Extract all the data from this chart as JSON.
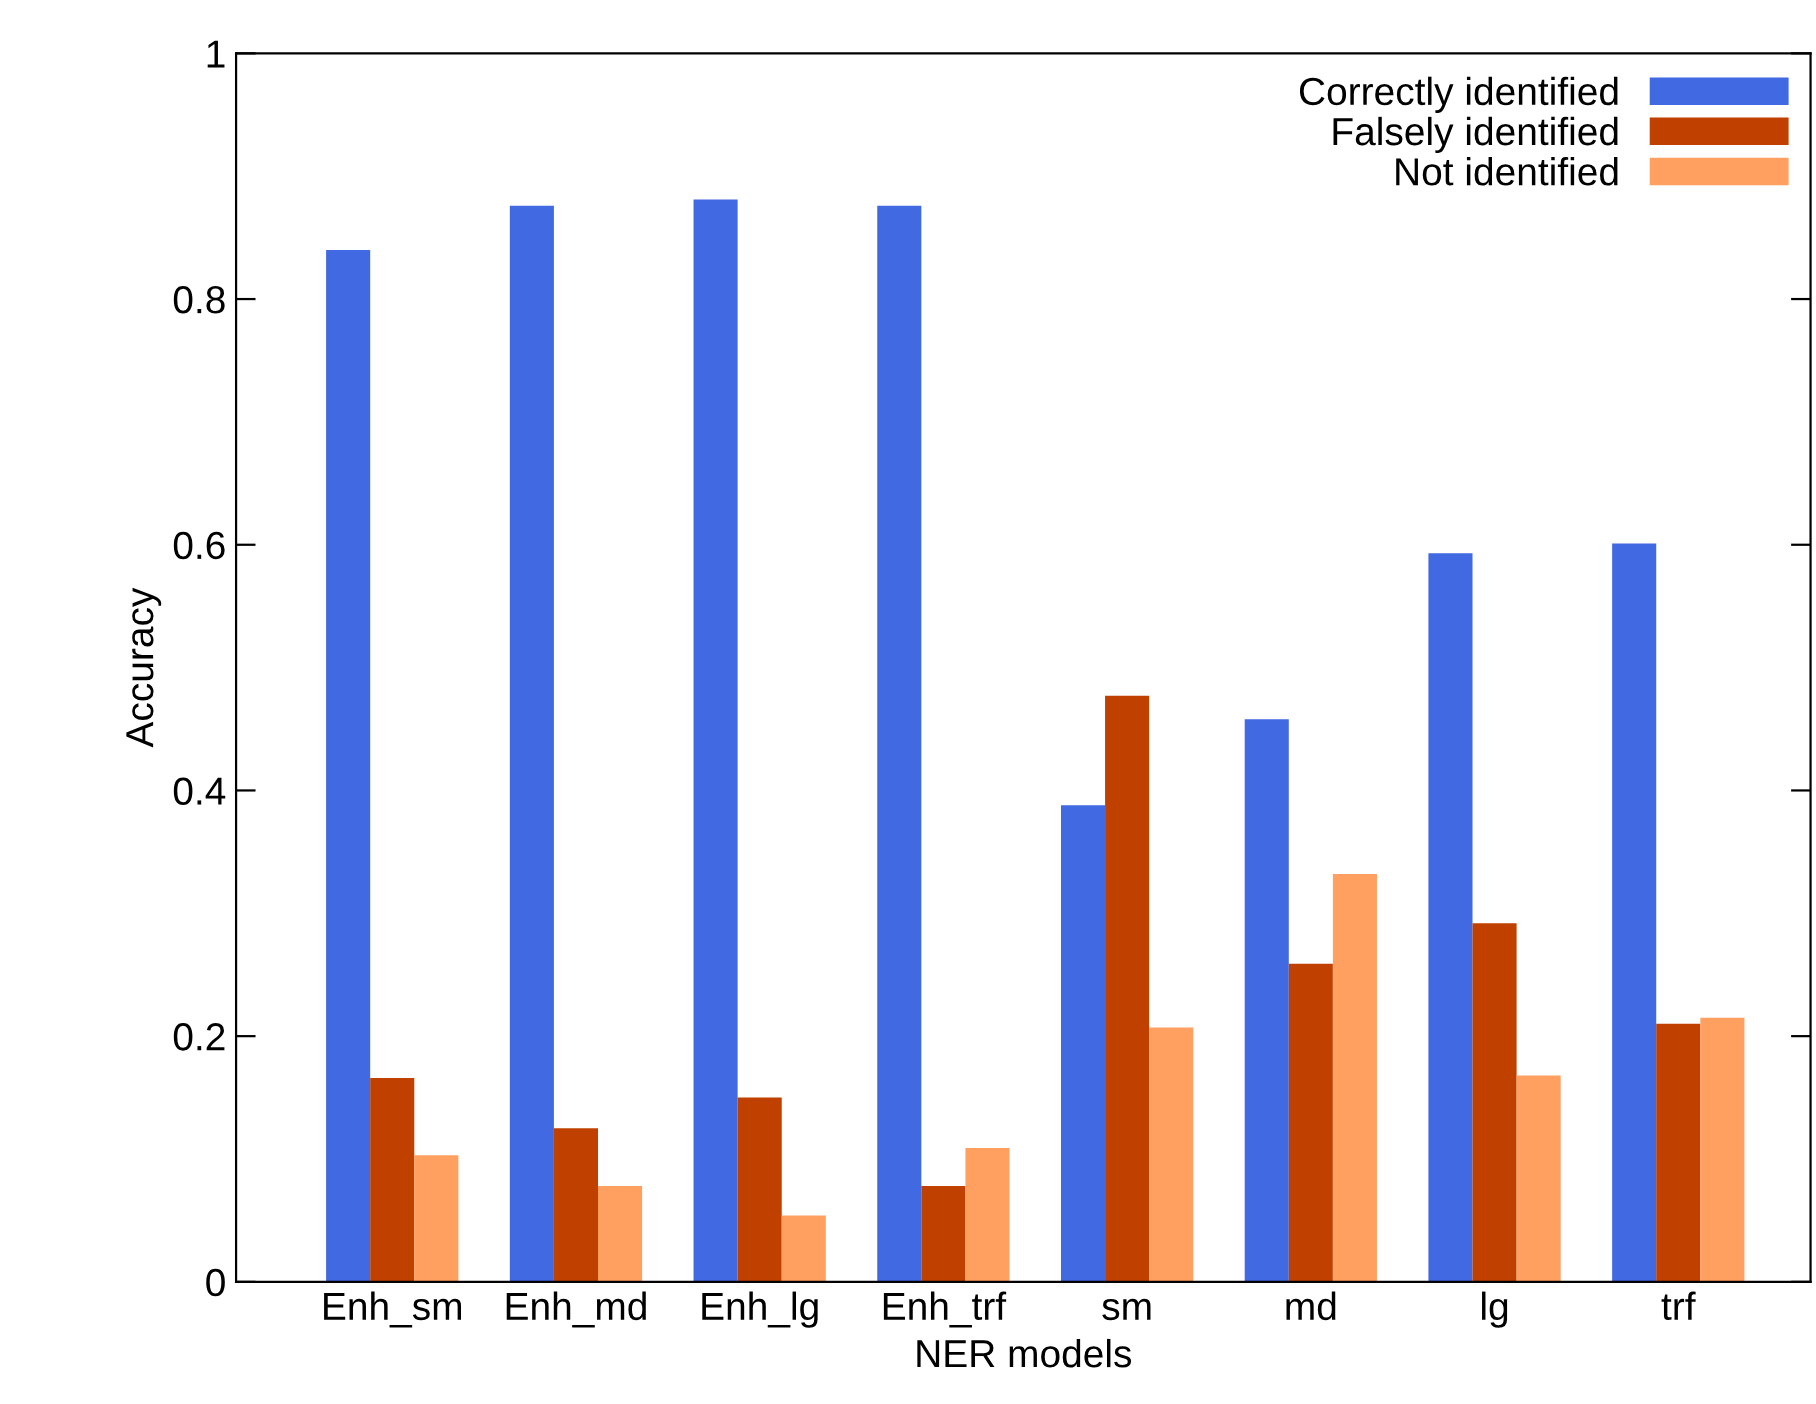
{
  "chart_data": {
    "type": "bar",
    "xlabel": "NER models",
    "ylabel": "Accuracy",
    "categories": [
      "Enh_sm",
      "Enh_md",
      "Enh_lg",
      "Enh_trf",
      "sm",
      "md",
      "lg",
      "trf"
    ],
    "series": [
      {
        "name": "Correctly identified",
        "color": "#4169e1",
        "values": [
          0.84,
          0.876,
          0.881,
          0.876,
          0.388,
          0.458,
          0.593,
          0.601
        ]
      },
      {
        "name": "Falsely identified",
        "color": "#c04000",
        "values": [
          0.166,
          0.125,
          0.15,
          0.078,
          0.477,
          0.259,
          0.292,
          0.21
        ]
      },
      {
        "name": "Not identified",
        "color": "#ffa060",
        "values": [
          0.103,
          0.078,
          0.054,
          0.109,
          0.207,
          0.332,
          0.168,
          0.215
        ]
      }
    ],
    "ylim": [
      0,
      1
    ],
    "yticks": [
      0,
      0.2,
      0.4,
      0.6,
      0.8,
      1
    ],
    "grid": false,
    "legend": "top right",
    "tick_labels": "xy"
  }
}
